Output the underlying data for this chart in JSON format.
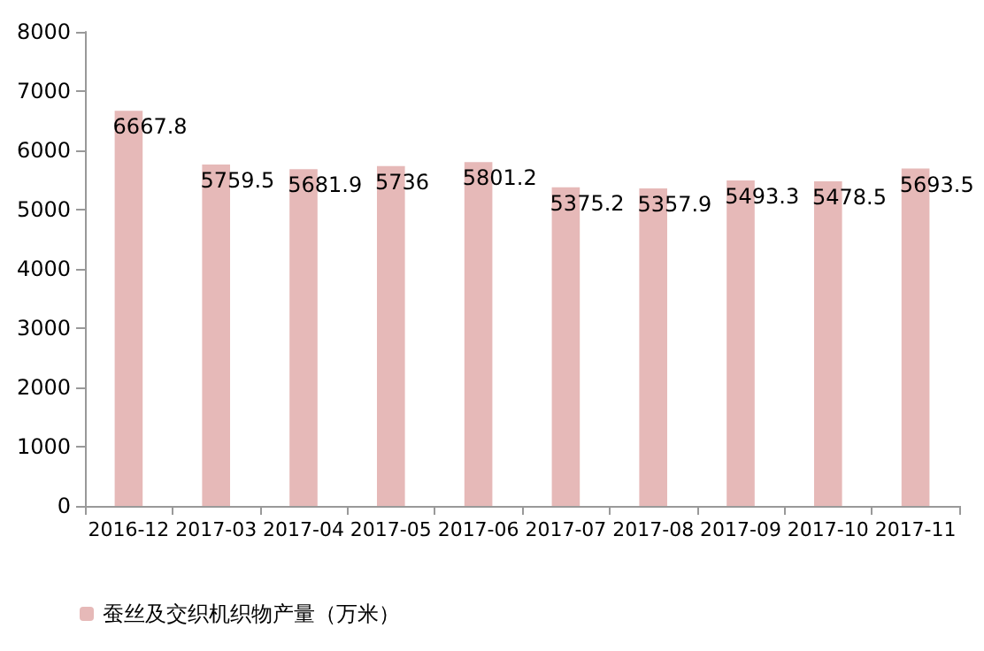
{
  "chart_data": {
    "type": "bar",
    "categories": [
      "2016-12",
      "2017-03",
      "2017-04",
      "2017-05",
      "2017-06",
      "2017-07",
      "2017-08",
      "2017-09",
      "2017-10",
      "2017-11"
    ],
    "series": [
      {
        "name": "蚕丝及交织机织物产量（万米）",
        "color": "#e6b9b8",
        "values": [
          6667.8,
          5759.5,
          5681.9,
          5736,
          5801.2,
          5375.2,
          5357.9,
          5493.3,
          5478.5,
          5693.5
        ]
      }
    ],
    "ylim": [
      0,
      8000
    ],
    "yticks": [
      0,
      1000,
      2000,
      3000,
      4000,
      5000,
      6000,
      7000,
      8000
    ],
    "data_labels": true,
    "legend": "bottom left",
    "grid": false
  }
}
